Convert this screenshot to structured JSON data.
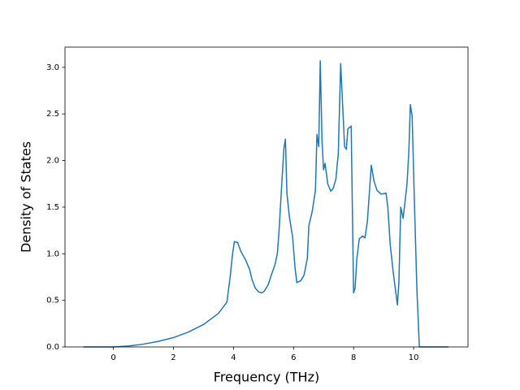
{
  "chart_data": {
    "type": "line",
    "x_label": "Frequency (THz)",
    "y_label": "Density of States",
    "xlim": [
      -1.61,
      11.81
    ],
    "ylim": [
      0,
      3.217
    ],
    "xticks": [
      0,
      2,
      4,
      6,
      8,
      10
    ],
    "yticks": [
      {
        "value": 0,
        "label": "0.0"
      },
      0.5,
      {
        "value": 1,
        "label": "1.0"
      },
      1.5,
      {
        "value": 2,
        "label": "2.0"
      },
      2.5,
      {
        "value": 3,
        "label": "3.0"
      }
    ],
    "grid": false,
    "x": [
      -1,
      0,
      0.5,
      1,
      1.5,
      2,
      2.5,
      3,
      3.5,
      3.78,
      3.89,
      3.97,
      4.03,
      4.14,
      4.24,
      4.41,
      4.54,
      4.62,
      4.73,
      4.84,
      4.95,
      5.03,
      5.16,
      5.27,
      5.38,
      5.46,
      5.51,
      5.59,
      5.68,
      5.73,
      5.78,
      5.86,
      5.97,
      6.05,
      6.11,
      6.24,
      6.35,
      6.46,
      6.51,
      6.62,
      6.73,
      6.78,
      6.84,
      6.89,
      6.95,
      7.0,
      7.05,
      7.14,
      7.24,
      7.32,
      7.41,
      7.49,
      7.57,
      7.65,
      7.7,
      7.76,
      7.81,
      7.92,
      8.0,
      8.05,
      8.11,
      8.19,
      8.3,
      8.38,
      8.46,
      8.54,
      8.59,
      8.68,
      8.78,
      8.92,
      9.08,
      9.14,
      9.22,
      9.32,
      9.46,
      9.51,
      9.57,
      9.65,
      9.7,
      9.78,
      9.84,
      9.89,
      9.95,
      10.03,
      10.11,
      10.19,
      11.16
    ],
    "series": [
      {
        "color": "#1f77b4",
        "values": [
          0,
          0,
          0.01,
          0.03,
          0.06,
          0.1,
          0.16,
          0.24,
          0.36,
          0.48,
          0.75,
          1.0,
          1.13,
          1.12,
          1.03,
          0.93,
          0.83,
          0.72,
          0.63,
          0.59,
          0.58,
          0.6,
          0.67,
          0.78,
          0.88,
          1.0,
          1.2,
          1.65,
          2.13,
          2.23,
          1.65,
          1.4,
          1.18,
          0.85,
          0.69,
          0.71,
          0.77,
          0.95,
          1.3,
          1.45,
          1.68,
          2.28,
          2.15,
          3.07,
          2.2,
          1.9,
          1.97,
          1.75,
          1.67,
          1.7,
          1.8,
          2.07,
          3.04,
          2.5,
          2.15,
          2.12,
          2.34,
          2.37,
          0.58,
          0.63,
          0.95,
          1.16,
          1.19,
          1.17,
          1.35,
          1.72,
          1.95,
          1.78,
          1.68,
          1.64,
          1.65,
          1.5,
          1.1,
          0.8,
          0.45,
          0.7,
          1.5,
          1.38,
          1.52,
          1.75,
          2.1,
          2.6,
          2.48,
          1.5,
          0.6,
          0,
          0
        ]
      }
    ]
  }
}
